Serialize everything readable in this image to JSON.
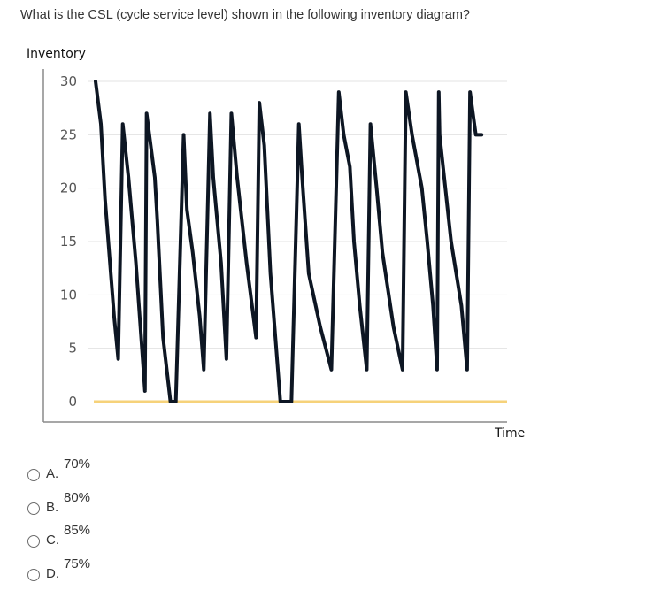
{
  "question": {
    "text": "What is the CSL (cycle service level) shown in the following inventory diagram?"
  },
  "chart_data": {
    "type": "line",
    "ylabel": "Inventory",
    "xlabel": "Time",
    "ylim": [
      0,
      30
    ],
    "yticks": [
      30,
      25,
      20,
      15,
      10,
      5,
      0
    ],
    "grid": true,
    "reference_line": {
      "y": 0,
      "color": "#f6d27a"
    },
    "series": [
      {
        "color": "#0d1623",
        "x": [
          0,
          1.3,
          2.3,
          4.5,
          5.5,
          6.6,
          8.0,
          9.8,
          12.0,
          12.4,
          14.4,
          15.0,
          16.4,
          18.2,
          19.5,
          21.4,
          22.2,
          23.6,
          25.3,
          26.1,
          26.3,
          27.8,
          28.6,
          30.5,
          31.8,
          33.0,
          34.4,
          36.7,
          39.0,
          39.8,
          41.0,
          42.5,
          44.9,
          45.4,
          47.6,
          49.4,
          50.2,
          51.8,
          54.6,
          57.3,
          59.1,
          60.3,
          61.8,
          62.8,
          64.2,
          65.9,
          66.8,
          68.3,
          69.7,
          72.4,
          74.6,
          75.4,
          76.9,
          79.3,
          80.6,
          82.0,
          83.0,
          83.4,
          83.6,
          85.0,
          86.4,
          88.9,
          90.3,
          91.0,
          92.4,
          93.8
        ],
        "y": [
          30,
          26,
          19,
          8,
          4,
          26,
          21,
          13,
          1,
          27,
          21,
          17,
          6,
          0,
          0,
          25,
          18,
          14,
          8,
          4,
          3,
          27,
          21,
          13,
          4,
          27,
          21,
          13,
          6,
          28,
          24,
          12,
          0,
          0,
          0,
          26,
          21,
          12,
          7,
          3,
          29,
          25,
          22,
          15,
          9,
          3,
          26,
          20,
          14,
          7,
          3,
          29,
          25,
          20,
          15,
          9,
          3,
          29,
          25,
          20,
          15,
          9,
          3,
          29,
          25,
          25
        ]
      }
    ]
  },
  "options": [
    {
      "letter": "A.",
      "value": "70%"
    },
    {
      "letter": "B.",
      "value": "80%"
    },
    {
      "letter": "C.",
      "value": "85%"
    },
    {
      "letter": "D.",
      "value": "75%"
    }
  ]
}
